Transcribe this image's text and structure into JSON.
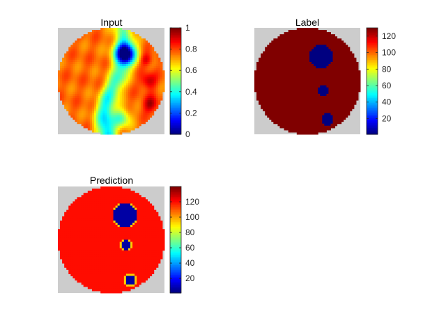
{
  "figure": {
    "background": "#ffffff",
    "outside_color": "#cccccc",
    "colormap": "jet"
  },
  "chart_data": [
    {
      "type": "heatmap",
      "title": "Input",
      "clim": [
        0,
        1
      ],
      "colorbar_ticks": [
        0,
        0.2,
        0.4,
        0.6,
        0.8,
        1
      ],
      "colorbar_tick_labels": [
        "0",
        "0.2",
        "0.4",
        "0.6",
        "0.8",
        "1"
      ],
      "description_of_field": "circular domain, mostly ~0.75 (orange), vertical low-value streak with blue (~0.1) minimum near top-center, red (~0.95) spots along right edge",
      "base_value": 0.77
    },
    {
      "type": "heatmap",
      "title": "Label",
      "clim": [
        1,
        130
      ],
      "colorbar_ticks": [
        20,
        40,
        60,
        80,
        100,
        120
      ],
      "colorbar_tick_labels": [
        "20",
        "40",
        "60",
        "80",
        "100",
        "120"
      ],
      "background_value": 130,
      "inclusion_value": 1
    },
    {
      "type": "heatmap",
      "title": "Prediction",
      "clim": [
        1,
        140
      ],
      "colorbar_ticks": [
        20,
        40,
        60,
        80,
        100,
        120
      ],
      "colorbar_tick_labels": [
        "20",
        "40",
        "60",
        "80",
        "100",
        "120"
      ],
      "background_value": 121,
      "inclusion_value": 6
    }
  ]
}
